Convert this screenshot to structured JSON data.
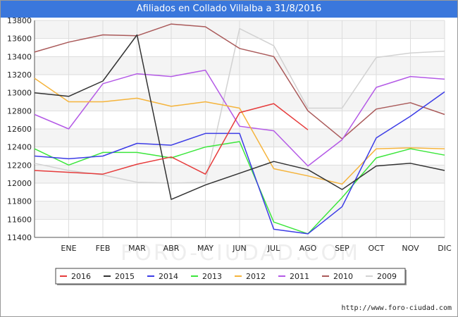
{
  "header": {
    "title": "Afiliados en Collado Villalba a 31/8/2016"
  },
  "footer": {
    "credit": "http://www.foro-ciudad.com"
  },
  "watermark": "FORO-CIUDAD.COM",
  "chart_data": {
    "type": "line",
    "title": "Afiliados en Collado Villalba a 31/8/2016",
    "xlabel": "",
    "ylabel": "",
    "categories": [
      "",
      "ENE",
      "FEB",
      "MAR",
      "ABR",
      "MAY",
      "JUN",
      "JUL",
      "AGO",
      "SEP",
      "OCT",
      "NOV",
      "DIC"
    ],
    "ylim": [
      11400,
      13800
    ],
    "yticks": [
      11400,
      11600,
      11800,
      12000,
      12200,
      12400,
      12600,
      12800,
      13000,
      13200,
      13400,
      13600,
      13800
    ],
    "grid": true,
    "legend_position": "bottom",
    "series": [
      {
        "name": "2016",
        "color": "#e63c3c",
        "values": [
          12140,
          12120,
          12100,
          12210,
          12290,
          12100,
          12780,
          12880,
          12590,
          null,
          null,
          null,
          null
        ]
      },
      {
        "name": "2015",
        "color": "#333333",
        "values": [
          13000,
          12960,
          13130,
          13640,
          11820,
          11980,
          12110,
          12240,
          12150,
          11930,
          12190,
          12220,
          12140
        ]
      },
      {
        "name": "2014",
        "color": "#3c3ce6",
        "values": [
          12300,
          12270,
          12300,
          12440,
          12420,
          12550,
          12550,
          11490,
          11440,
          11740,
          12500,
          12740,
          13010
        ]
      },
      {
        "name": "2013",
        "color": "#3ce63c",
        "values": [
          12380,
          12200,
          12340,
          12340,
          12280,
          12400,
          12460,
          11570,
          11440,
          11840,
          12280,
          12380,
          12310
        ]
      },
      {
        "name": "2012",
        "color": "#f5b43c",
        "values": [
          13160,
          12900,
          12900,
          12940,
          12850,
          12900,
          12830,
          12160,
          12080,
          11990,
          12380,
          12390,
          12380
        ]
      },
      {
        "name": "2011",
        "color": "#b45ae6",
        "values": [
          12760,
          12600,
          13100,
          13210,
          13180,
          13250,
          12630,
          12580,
          12190,
          12480,
          13060,
          13180,
          13150
        ]
      },
      {
        "name": "2010",
        "color": "#aa5a5a",
        "values": [
          13450,
          13560,
          13640,
          13630,
          13760,
          13730,
          13490,
          13400,
          12800,
          12490,
          12820,
          12890,
          12760
        ]
      },
      {
        "name": "2009",
        "color": "#d2d2d2",
        "values": [
          12220,
          12140,
          12090,
          12010,
          12000,
          12010,
          13710,
          13520,
          12830,
          12830,
          13390,
          13440,
          13460
        ]
      }
    ]
  }
}
